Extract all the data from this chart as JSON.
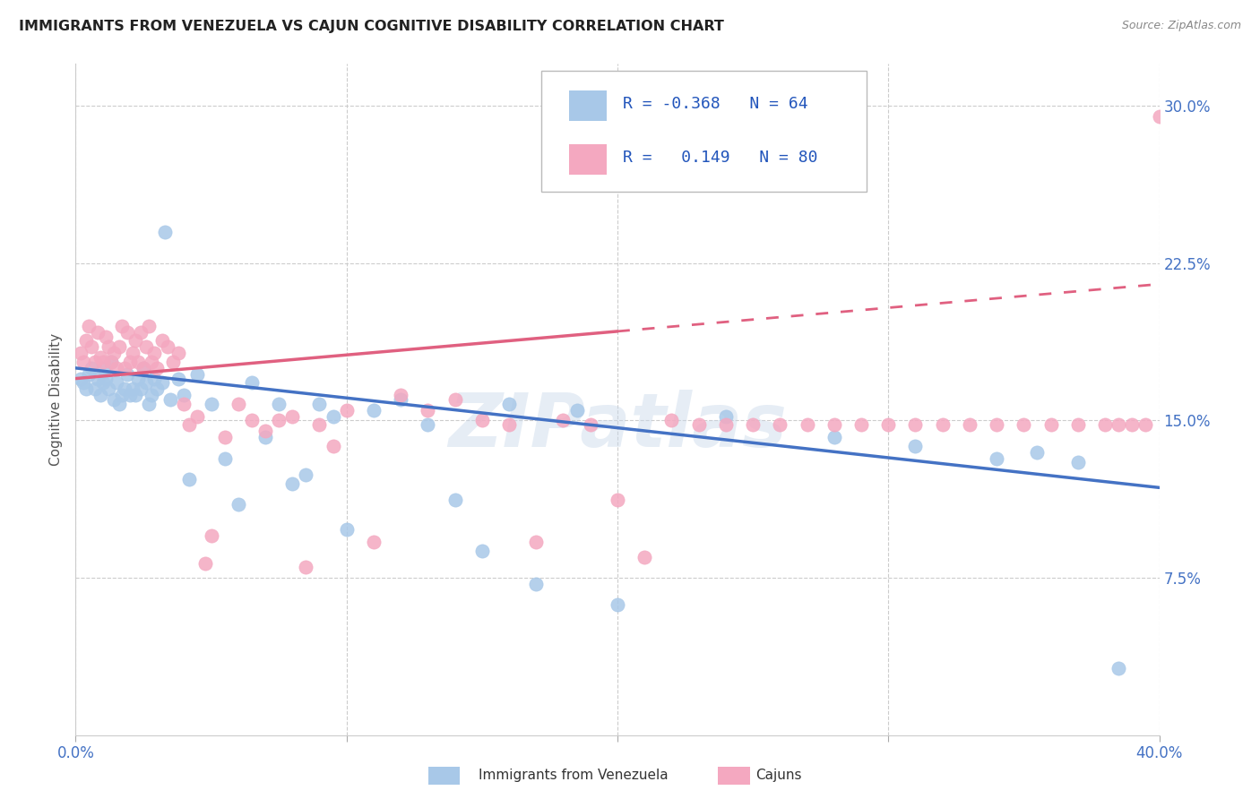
{
  "title": "IMMIGRANTS FROM VENEZUELA VS CAJUN COGNITIVE DISABILITY CORRELATION CHART",
  "source": "Source: ZipAtlas.com",
  "ylabel": "Cognitive Disability",
  "xlim": [
    0.0,
    0.4
  ],
  "ylim": [
    0.0,
    0.32
  ],
  "xticks": [
    0.0,
    0.1,
    0.2,
    0.3,
    0.4
  ],
  "xticklabels": [
    "0.0%",
    "",
    "",
    "",
    "40.0%"
  ],
  "yticks": [
    0.075,
    0.15,
    0.225,
    0.3
  ],
  "yticklabels": [
    "7.5%",
    "15.0%",
    "22.5%",
    "30.0%"
  ],
  "blue_R": -0.368,
  "blue_N": 64,
  "pink_R": 0.149,
  "pink_N": 80,
  "blue_color": "#a8c8e8",
  "pink_color": "#f4a8c0",
  "blue_line_color": "#4472c4",
  "pink_line_color": "#e06080",
  "watermark": "ZIPatlas",
  "blue_line_x0": 0.0,
  "blue_line_y0": 0.175,
  "blue_line_x1": 0.4,
  "blue_line_y1": 0.118,
  "pink_line_x0": 0.0,
  "pink_line_y0": 0.17,
  "pink_line_x1": 0.25,
  "pink_line_x1_solid": 0.2,
  "pink_line_x1_dash": 0.4,
  "pink_line_y1": 0.215,
  "blue_scatter_x": [
    0.002,
    0.003,
    0.004,
    0.005,
    0.006,
    0.007,
    0.008,
    0.009,
    0.01,
    0.01,
    0.011,
    0.012,
    0.013,
    0.014,
    0.015,
    0.016,
    0.017,
    0.018,
    0.019,
    0.02,
    0.021,
    0.022,
    0.023,
    0.024,
    0.025,
    0.026,
    0.027,
    0.028,
    0.029,
    0.03,
    0.032,
    0.033,
    0.035,
    0.038,
    0.04,
    0.042,
    0.045,
    0.05,
    0.055,
    0.06,
    0.065,
    0.07,
    0.075,
    0.08,
    0.085,
    0.09,
    0.095,
    0.1,
    0.11,
    0.12,
    0.13,
    0.14,
    0.15,
    0.16,
    0.17,
    0.185,
    0.2,
    0.24,
    0.28,
    0.31,
    0.34,
    0.355,
    0.37,
    0.385
  ],
  "blue_scatter_y": [
    0.17,
    0.168,
    0.165,
    0.172,
    0.175,
    0.165,
    0.17,
    0.162,
    0.168,
    0.175,
    0.17,
    0.165,
    0.178,
    0.16,
    0.168,
    0.158,
    0.162,
    0.165,
    0.172,
    0.162,
    0.165,
    0.162,
    0.17,
    0.165,
    0.175,
    0.168,
    0.158,
    0.162,
    0.17,
    0.165,
    0.168,
    0.24,
    0.16,
    0.17,
    0.162,
    0.122,
    0.172,
    0.158,
    0.132,
    0.11,
    0.168,
    0.142,
    0.158,
    0.12,
    0.124,
    0.158,
    0.152,
    0.098,
    0.155,
    0.16,
    0.148,
    0.112,
    0.088,
    0.158,
    0.072,
    0.155,
    0.062,
    0.152,
    0.142,
    0.138,
    0.132,
    0.135,
    0.13,
    0.032
  ],
  "pink_scatter_x": [
    0.002,
    0.003,
    0.004,
    0.005,
    0.006,
    0.007,
    0.008,
    0.009,
    0.01,
    0.011,
    0.012,
    0.013,
    0.014,
    0.015,
    0.016,
    0.017,
    0.018,
    0.019,
    0.02,
    0.021,
    0.022,
    0.023,
    0.024,
    0.025,
    0.026,
    0.027,
    0.028,
    0.029,
    0.03,
    0.032,
    0.034,
    0.036,
    0.038,
    0.04,
    0.042,
    0.045,
    0.048,
    0.05,
    0.055,
    0.06,
    0.065,
    0.07,
    0.075,
    0.08,
    0.085,
    0.09,
    0.095,
    0.1,
    0.11,
    0.12,
    0.13,
    0.14,
    0.15,
    0.16,
    0.17,
    0.18,
    0.19,
    0.2,
    0.21,
    0.22,
    0.23,
    0.24,
    0.25,
    0.26,
    0.27,
    0.28,
    0.29,
    0.3,
    0.31,
    0.32,
    0.33,
    0.34,
    0.35,
    0.36,
    0.37,
    0.38,
    0.385,
    0.39,
    0.395,
    0.4
  ],
  "pink_scatter_y": [
    0.182,
    0.178,
    0.188,
    0.195,
    0.185,
    0.178,
    0.192,
    0.18,
    0.178,
    0.19,
    0.185,
    0.178,
    0.182,
    0.175,
    0.185,
    0.195,
    0.175,
    0.192,
    0.178,
    0.182,
    0.188,
    0.178,
    0.192,
    0.175,
    0.185,
    0.195,
    0.178,
    0.182,
    0.175,
    0.188,
    0.185,
    0.178,
    0.182,
    0.158,
    0.148,
    0.152,
    0.082,
    0.095,
    0.142,
    0.158,
    0.15,
    0.145,
    0.15,
    0.152,
    0.08,
    0.148,
    0.138,
    0.155,
    0.092,
    0.162,
    0.155,
    0.16,
    0.15,
    0.148,
    0.092,
    0.15,
    0.148,
    0.112,
    0.085,
    0.15,
    0.148,
    0.148,
    0.148,
    0.148,
    0.148,
    0.148,
    0.148,
    0.148,
    0.148,
    0.148,
    0.148,
    0.148,
    0.148,
    0.148,
    0.148,
    0.148,
    0.148,
    0.148,
    0.148,
    0.295
  ]
}
